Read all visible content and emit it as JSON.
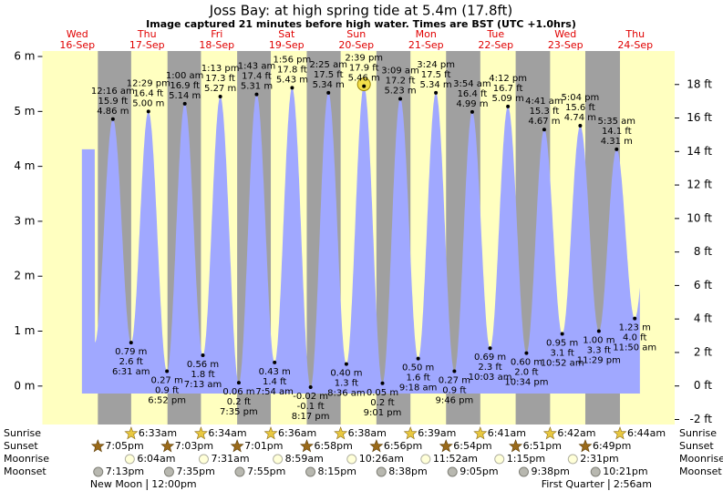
{
  "chart_data": {
    "type": "tide",
    "title": "Joss Bay: at high  spring tide at 5.4m (17.8ft)",
    "subtitle": "Image captured 21 minutes before high water. Times are BST (UTC +1.0hrs)",
    "ylim": [
      -0.7,
      6.1
    ],
    "yticks": [
      {
        "value": 0,
        "label": "0 m"
      },
      {
        "value": 1,
        "label": "1 m"
      },
      {
        "value": 2,
        "label": "2 m"
      },
      {
        "value": 3,
        "label": "3 m"
      },
      {
        "value": 4,
        "label": "4 m"
      },
      {
        "value": 5,
        "label": "5 m"
      },
      {
        "value": 6,
        "label": "6 m"
      }
    ],
    "y2lim": [
      -2.3,
      20.0
    ],
    "y2ticks": [
      {
        "value": -2,
        "label": "-2 ft"
      },
      {
        "value": 0,
        "label": "0 ft"
      },
      {
        "value": 2,
        "label": "2 ft"
      },
      {
        "value": 4,
        "label": "4 ft"
      },
      {
        "value": 6,
        "label": "6 ft"
      },
      {
        "value": 8,
        "label": "8 ft"
      },
      {
        "value": 10,
        "label": "10 ft"
      },
      {
        "value": 12,
        "label": "12 ft"
      },
      {
        "value": 14,
        "label": "14 ft"
      },
      {
        "value": 16,
        "label": "16 ft"
      },
      {
        "value": 18,
        "label": "18 ft"
      }
    ],
    "colors": {
      "day": "#ffffc0",
      "night": "#a0a0a0",
      "water": "#a0a8ff"
    },
    "row_labels": {
      "sunrise": "Sunrise",
      "sunset": "Sunset",
      "moonrise": "Moonrise",
      "moonset": "Moonset"
    },
    "days": [
      {
        "weekday": "Wed",
        "date": "16-Sep",
        "sunset": "7:05pm",
        "moonset": "7:13pm",
        "tides": []
      },
      {
        "weekday": "Thu",
        "date": "17-Sep",
        "sunrise": "6:33am",
        "sunset": "7:03pm",
        "moonrise": "6:04am",
        "moonset": "7:35pm",
        "phase": {
          "name": "New Moon",
          "time": "12:00pm"
        },
        "tides": [
          {
            "time": "12:16 am",
            "height_m": {
              "value": 4.86,
              "label": "4.86 m"
            },
            "height_ft": {
              "value": 15.9,
              "label": "15.9 ft"
            }
          },
          {
            "time": "6:31 am",
            "height_m": {
              "value": 0.79,
              "label": "0.79 m"
            },
            "height_ft": {
              "value": 2.6,
              "label": "2.6 ft"
            }
          },
          {
            "time": "12:29 pm",
            "height_m": {
              "value": 5.0,
              "label": "5.00 m"
            },
            "height_ft": {
              "value": 16.4,
              "label": "16.4 ft"
            }
          },
          {
            "time": "6:52 pm",
            "height_m": {
              "value": 0.27,
              "label": "0.27 m"
            },
            "height_ft": {
              "value": 0.9,
              "label": "0.9 ft"
            }
          }
        ]
      },
      {
        "weekday": "Fri",
        "date": "18-Sep",
        "sunrise": "6:34am",
        "sunset": "7:01pm",
        "moonrise": "7:31am",
        "moonset": "7:55pm",
        "tides": [
          {
            "time": "1:00 am",
            "height_m": {
              "value": 5.14,
              "label": "5.14 m"
            },
            "height_ft": {
              "value": 16.9,
              "label": "16.9 ft"
            }
          },
          {
            "time": "7:13 am",
            "height_m": {
              "value": 0.56,
              "label": "0.56 m"
            },
            "height_ft": {
              "value": 1.8,
              "label": "1.8 ft"
            }
          },
          {
            "time": "1:13 pm",
            "height_m": {
              "value": 5.27,
              "label": "5.27 m"
            },
            "height_ft": {
              "value": 17.3,
              "label": "17.3 ft"
            }
          },
          {
            "time": "7:35 pm",
            "height_m": {
              "value": 0.06,
              "label": "0.06 m"
            },
            "height_ft": {
              "value": 0.2,
              "label": "0.2 ft"
            }
          }
        ]
      },
      {
        "weekday": "Sat",
        "date": "19-Sep",
        "sunrise": "6:36am",
        "sunset": "6:58pm",
        "moonrise": "8:59am",
        "moonset": "8:15pm",
        "tides": [
          {
            "time": "1:43 am",
            "height_m": {
              "value": 5.31,
              "label": "5.31 m"
            },
            "height_ft": {
              "value": 17.4,
              "label": "17.4 ft"
            }
          },
          {
            "time": "7:54 am",
            "height_m": {
              "value": 0.43,
              "label": "0.43 m"
            },
            "height_ft": {
              "value": 1.4,
              "label": "1.4 ft"
            }
          },
          {
            "time": "1:56 pm",
            "height_m": {
              "value": 5.43,
              "label": "5.43 m"
            },
            "height_ft": {
              "value": 17.8,
              "label": "17.8 ft"
            }
          },
          {
            "time": "8:17 pm",
            "height_m": {
              "value": -0.02,
              "label": "-0.02 m"
            },
            "height_ft": {
              "value": -0.1,
              "label": "-0.1 ft"
            }
          }
        ]
      },
      {
        "weekday": "Sun",
        "date": "20-Sep",
        "sunrise": "6:38am",
        "sunset": "6:56pm",
        "moonrise": "10:26am",
        "moonset": "8:38pm",
        "tides": [
          {
            "time": "2:25 am",
            "height_m": {
              "value": 5.34,
              "label": "5.34 m"
            },
            "height_ft": {
              "value": 17.5,
              "label": "17.5 ft"
            }
          },
          {
            "time": "8:36 am",
            "height_m": {
              "value": 0.4,
              "label": "0.40 m"
            },
            "height_ft": {
              "value": 1.3,
              "label": "1.3 ft"
            }
          },
          {
            "time": "2:39 pm",
            "height_m": {
              "value": 5.46,
              "label": "5.46 m"
            },
            "height_ft": {
              "value": 17.9,
              "label": "17.9 ft"
            },
            "highlight": true
          },
          {
            "time": "9:01 pm",
            "height_m": {
              "value": 0.05,
              "label": "0.05 m"
            },
            "height_ft": {
              "value": 0.2,
              "label": "0.2 ft"
            }
          }
        ]
      },
      {
        "weekday": "Mon",
        "date": "21-Sep",
        "sunrise": "6:39am",
        "sunset": "6:54pm",
        "moonrise": "11:52am",
        "moonset": "9:05pm",
        "tides": [
          {
            "time": "3:09 am",
            "height_m": {
              "value": 5.23,
              "label": "5.23 m"
            },
            "height_ft": {
              "value": 17.2,
              "label": "17.2 ft"
            }
          },
          {
            "time": "9:18 am",
            "height_m": {
              "value": 0.5,
              "label": "0.50 m"
            },
            "height_ft": {
              "value": 1.6,
              "label": "1.6 ft"
            }
          },
          {
            "time": "3:24 pm",
            "height_m": {
              "value": 5.34,
              "label": "5.34 m"
            },
            "height_ft": {
              "value": 17.5,
              "label": "17.5 ft"
            }
          },
          {
            "time": "9:46 pm",
            "height_m": {
              "value": 0.27,
              "label": "0.27 m"
            },
            "height_ft": {
              "value": 0.9,
              "label": "0.9 ft"
            }
          }
        ]
      },
      {
        "weekday": "Tue",
        "date": "22-Sep",
        "sunrise": "6:41am",
        "sunset": "6:51pm",
        "moonrise": "1:15pm",
        "moonset": "9:38pm",
        "tides": [
          {
            "time": "3:54 am",
            "height_m": {
              "value": 4.99,
              "label": "4.99 m"
            },
            "height_ft": {
              "value": 16.4,
              "label": "16.4 ft"
            }
          },
          {
            "time": "10:03 am",
            "height_m": {
              "value": 0.69,
              "label": "0.69 m"
            },
            "height_ft": {
              "value": 2.3,
              "label": "2.3 ft"
            }
          },
          {
            "time": "4:12 pm",
            "height_m": {
              "value": 5.09,
              "label": "5.09 m"
            },
            "height_ft": {
              "value": 16.7,
              "label": "16.7 ft"
            }
          },
          {
            "time": "10:34 pm",
            "height_m": {
              "value": 0.6,
              "label": "0.60 m"
            },
            "height_ft": {
              "value": 2.0,
              "label": "2.0 ft"
            }
          }
        ]
      },
      {
        "weekday": "Wed",
        "date": "23-Sep",
        "sunrise": "6:42am",
        "sunset": "6:49pm",
        "moonrise": "2:31pm",
        "moonset": "10:21pm",
        "tides": [
          {
            "time": "4:41 am",
            "height_m": {
              "value": 4.67,
              "label": "4.67 m"
            },
            "height_ft": {
              "value": 15.3,
              "label": "15.3 ft"
            }
          },
          {
            "time": "10:52 am",
            "height_m": {
              "value": 0.95,
              "label": "0.95 m"
            },
            "height_ft": {
              "value": 3.1,
              "label": "3.1 ft"
            }
          },
          {
            "time": "5:04 pm",
            "height_m": {
              "value": 4.74,
              "label": "4.74 m"
            },
            "height_ft": {
              "value": 15.6,
              "label": "15.6 ft"
            }
          },
          {
            "time": "11:29 pm",
            "height_m": {
              "value": 1.0,
              "label": "1.00 m"
            },
            "height_ft": {
              "value": 3.3,
              "label": "3.3 ft"
            }
          }
        ]
      },
      {
        "weekday": "Thu",
        "date": "24-Sep",
        "sunrise": "6:44am",
        "phase": {
          "name": "First Quarter",
          "time": "2:56am"
        },
        "tides": [
          {
            "time": "5:35 am",
            "height_m": {
              "value": 4.31,
              "label": "4.31 m"
            },
            "height_ft": {
              "value": 14.1,
              "label": "14.1 ft"
            }
          },
          {
            "time": "11:50 am",
            "height_m": {
              "value": 1.23,
              "label": "1.23 m"
            },
            "height_ft": {
              "value": 4.0,
              "label": "4.0 ft"
            }
          }
        ]
      }
    ]
  }
}
